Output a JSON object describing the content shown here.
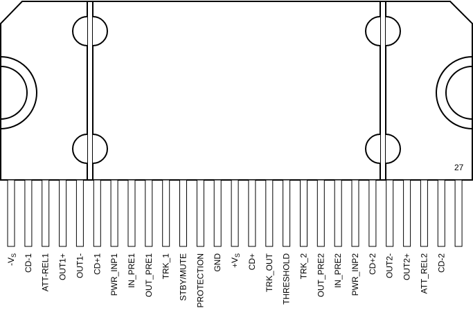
{
  "diagram": {
    "pin_number_label": "27",
    "pins": [
      {
        "label": "-V",
        "sub": "S"
      },
      {
        "label": "CD-1"
      },
      {
        "label": "ATT-REL1"
      },
      {
        "label": "OUT1+"
      },
      {
        "label": "OUT1-"
      },
      {
        "label": "CD+1"
      },
      {
        "label": "PWR_INP1"
      },
      {
        "label": "IN_PRE1"
      },
      {
        "label": "OUT_PRE1"
      },
      {
        "label": "TRK_1"
      },
      {
        "label": "STBY/MUTE"
      },
      {
        "label": "PROTECTION"
      },
      {
        "label": "GND"
      },
      {
        "label": "+V",
        "sub": "S"
      },
      {
        "label": "CD+"
      },
      {
        "label": "TRK_OUT"
      },
      {
        "label": "THRESHOLD"
      },
      {
        "label": "TRK_2"
      },
      {
        "label": "OUT_PRE2"
      },
      {
        "label": "IN_PRE2"
      },
      {
        "label": "PWR_INP2"
      },
      {
        "label": "CD+2"
      },
      {
        "label": "OUT2-"
      },
      {
        "label": "OUT2+"
      },
      {
        "label": "ATT_REL2"
      },
      {
        "label": "CD-2"
      },
      {
        "label": ""
      }
    ]
  }
}
